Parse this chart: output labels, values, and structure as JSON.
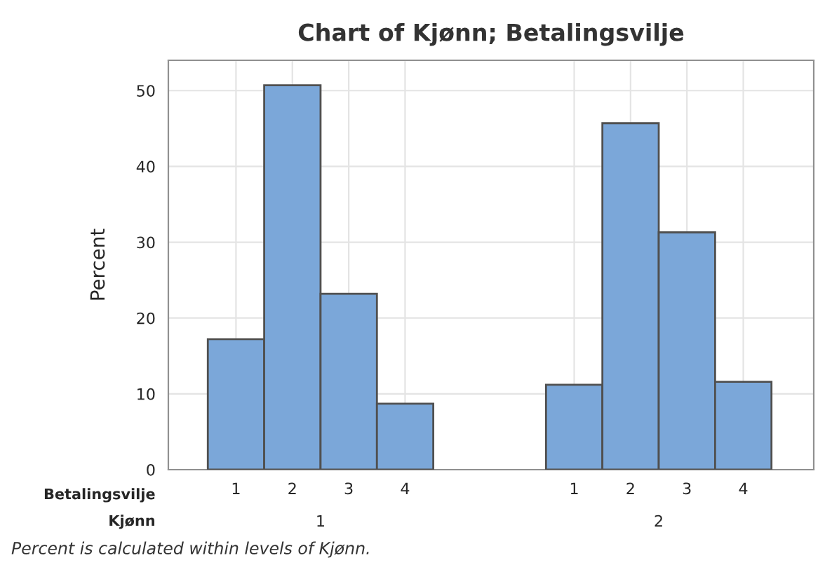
{
  "chart_data": {
    "type": "bar",
    "title": "Chart of Kjønn; Betalingsvilje",
    "ylabel": "Percent",
    "xlabel": "Betalingsvilje",
    "categories": [
      "1",
      "2",
      "3",
      "4",
      null,
      null,
      "1",
      "2",
      "3",
      "4"
    ],
    "values": [
      17.2,
      50.7,
      23.2,
      8.7,
      null,
      null,
      11.2,
      45.7,
      31.3,
      11.6
    ],
    "color": "#7ba7d9",
    "ylim": [
      0,
      54
    ],
    "yticks": [
      0,
      10,
      20,
      30,
      40,
      50
    ],
    "grid": true,
    "annotations": [
      "Kjønn",
      "1",
      "2",
      "Percent is calculated within levels of Kjønn."
    ]
  }
}
